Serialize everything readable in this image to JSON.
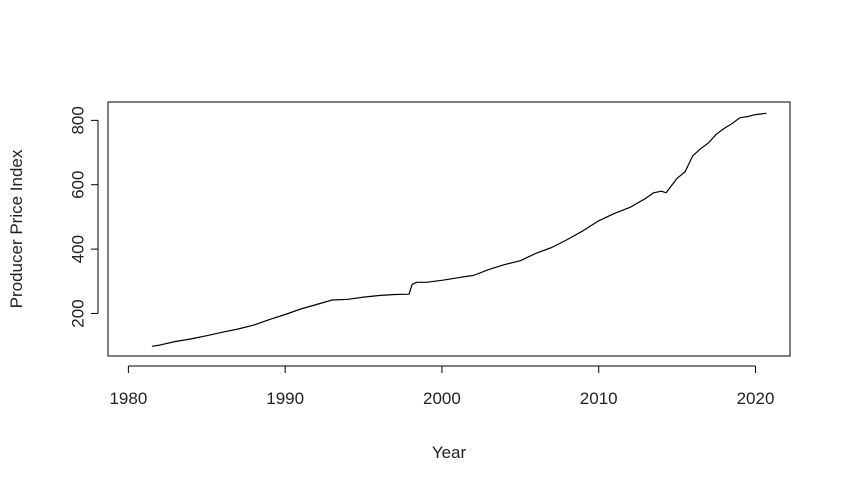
{
  "chart_data": {
    "type": "line",
    "title": "",
    "xlabel": "Year",
    "ylabel": "Producer Price Index",
    "xlim": [
      1978.7,
      2022.2
    ],
    "ylim": [
      68,
      857
    ],
    "x_ticks": [
      1980,
      1990,
      2000,
      2010,
      2020
    ],
    "x_tick_labels": [
      "1980",
      "1990",
      "2000",
      "2010",
      "2020"
    ],
    "y_ticks": [
      200,
      400,
      600,
      800
    ],
    "y_tick_labels": [
      "200",
      "400",
      "600",
      "800"
    ],
    "grid": false,
    "legend": "none",
    "line_color": "#000000",
    "series": [
      {
        "x": [
          1981.5,
          1982.0,
          1983.0,
          1984.0,
          1985.0,
          1986.0,
          1987.0,
          1988.0,
          1989.0,
          1990.0,
          1991.0,
          1992.0,
          1993.0,
          1994.0,
          1995.0,
          1996.0,
          1997.0,
          1997.9,
          1998.1,
          1998.4,
          1999.0,
          2000.0,
          2001.0,
          2001.5,
          2002.0,
          2003.0,
          2004.0,
          2005.0,
          2006.0,
          2007.0,
          2008.0,
          2009.0,
          2010.0,
          2011.0,
          2012.0,
          2013.0,
          2013.5,
          2014.0,
          2014.3,
          2015.0,
          2015.5,
          2016.0,
          2016.5,
          2017.0,
          2017.5,
          2018.0,
          2018.5,
          2019.0,
          2019.5,
          2020.0,
          2020.7
        ],
        "y": [
          98,
          102,
          113,
          121,
          131,
          142,
          152,
          164,
          181,
          197,
          214,
          228,
          242,
          244,
          251,
          256,
          259,
          260,
          291,
          297,
          297,
          303,
          311,
          315,
          318,
          337,
          352,
          364,
          387,
          405,
          430,
          457,
          488,
          511,
          530,
          558,
          575,
          580,
          575,
          620,
          640,
          690,
          712,
          730,
          757,
          775,
          790,
          808,
          812,
          818,
          822
        ]
      }
    ]
  }
}
